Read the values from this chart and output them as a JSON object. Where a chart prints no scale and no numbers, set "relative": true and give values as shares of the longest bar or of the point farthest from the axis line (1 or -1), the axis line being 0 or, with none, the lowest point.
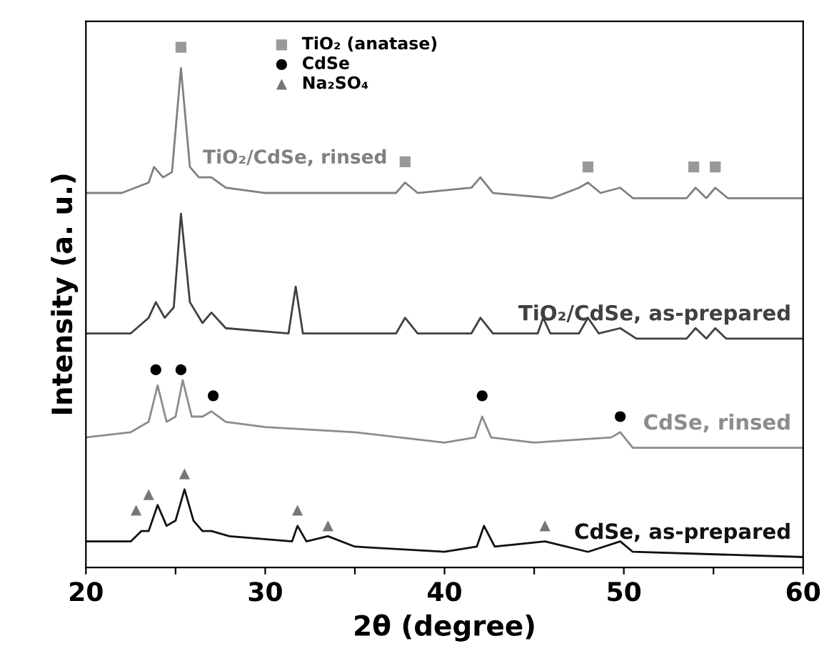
{
  "chart_data": {
    "type": "line",
    "relative": true,
    "xlabel": "2θ (degree)",
    "ylabel": "Intensity (a. u.)",
    "xlim": [
      20,
      60
    ],
    "xticks": [
      20,
      {
        "value": 25,
        "label": null
      },
      30,
      {
        "value": 35,
        "label": null
      },
      40,
      {
        "value": 45,
        "label": null
      },
      50,
      {
        "value": 55,
        "label": null
      },
      60
    ],
    "tick_labels": "x",
    "grid": false,
    "legend": "top",
    "marker": "none",
    "series": [
      {
        "name": "TiO₂/CdSe, rinsed",
        "color": "#808080",
        "x": [
          20,
          22,
          23.5,
          23.8,
          24.3,
          24.8,
          25.3,
          25.8,
          26.3,
          27,
          27.8,
          30,
          35,
          37.3,
          37.8,
          38.5,
          41.5,
          42,
          42.7,
          46,
          47.5,
          48,
          48.7,
          49.8,
          50.5,
          53.5,
          54,
          54.6,
          55.1,
          55.8,
          60
        ],
        "values": [
          0.72,
          0.72,
          0.74,
          0.77,
          0.75,
          0.76,
          0.96,
          0.77,
          0.75,
          0.75,
          0.73,
          0.72,
          0.72,
          0.72,
          0.74,
          0.72,
          0.73,
          0.75,
          0.72,
          0.71,
          0.73,
          0.74,
          0.72,
          0.73,
          0.71,
          0.71,
          0.73,
          0.71,
          0.73,
          0.71,
          0.71
        ]
      },
      {
        "name": "TiO₂/CdSe, as-prepared",
        "color": "#404040",
        "x": [
          20,
          22.5,
          23.5,
          23.9,
          24.4,
          24.9,
          25.3,
          25.8,
          26.5,
          27,
          27.8,
          31.3,
          31.7,
          32.1,
          37.3,
          37.8,
          38.5,
          41.5,
          42,
          42.7,
          45.2,
          45.5,
          45.9,
          47.5,
          48,
          48.6,
          49.8,
          50.7,
          53.5,
          54,
          54.6,
          55.1,
          55.7,
          60
        ],
        "values": [
          0.45,
          0.45,
          0.48,
          0.51,
          0.48,
          0.5,
          0.68,
          0.51,
          0.47,
          0.49,
          0.46,
          0.45,
          0.54,
          0.45,
          0.45,
          0.48,
          0.45,
          0.45,
          0.48,
          0.45,
          0.45,
          0.48,
          0.45,
          0.45,
          0.48,
          0.45,
          0.46,
          0.44,
          0.44,
          0.46,
          0.44,
          0.46,
          0.44,
          0.44
        ]
      },
      {
        "name": "CdSe, rinsed",
        "color": "#8c8c8c",
        "x": [
          20,
          22.5,
          23.5,
          24,
          24.5,
          25,
          25.4,
          25.9,
          26.5,
          27,
          27.8,
          30,
          35,
          40,
          41.7,
          42.1,
          42.6,
          45,
          49.3,
          49.8,
          50.5,
          60
        ],
        "values": [
          0.25,
          0.26,
          0.28,
          0.35,
          0.28,
          0.29,
          0.36,
          0.29,
          0.29,
          0.3,
          0.28,
          0.27,
          0.26,
          0.24,
          0.25,
          0.29,
          0.25,
          0.24,
          0.25,
          0.26,
          0.23,
          0.23
        ]
      },
      {
        "name": "CdSe, as-prepared",
        "color": "#111111",
        "x": [
          20,
          22.5,
          23.1,
          23.5,
          24,
          24.5,
          25,
          25.5,
          26,
          26.5,
          27,
          28,
          31.5,
          31.8,
          32.3,
          33.5,
          35,
          40,
          41.8,
          42.2,
          42.8,
          45.6,
          48,
          49.8,
          50.5,
          60
        ],
        "values": [
          0.05,
          0.05,
          0.07,
          0.07,
          0.12,
          0.08,
          0.09,
          0.15,
          0.09,
          0.07,
          0.07,
          0.06,
          0.05,
          0.08,
          0.05,
          0.06,
          0.04,
          0.03,
          0.04,
          0.08,
          0.04,
          0.05,
          0.03,
          0.05,
          0.03,
          0.02
        ]
      },
      {
        "type": "scatter",
        "name": "TiO₂ (anatase)",
        "marker": "square",
        "color": "#999999",
        "x": [
          25.3,
          37.8,
          48,
          53.9,
          55.1
        ],
        "values": [
          1.0,
          0.78,
          0.77,
          0.77,
          0.77
        ]
      },
      {
        "type": "scatter",
        "name": "CdSe",
        "marker": "circle",
        "color": "#000000",
        "x": [
          23.9,
          25.3,
          27.1,
          42.1,
          49.8
        ],
        "values": [
          0.38,
          0.38,
          0.33,
          0.33,
          0.29
        ]
      },
      {
        "type": "scatter",
        "name": "Na₂SO₄",
        "marker": "triangle",
        "color": "#777777",
        "x": [
          22.8,
          23.5,
          25.5,
          31.8,
          33.5,
          45.6
        ],
        "values": [
          0.11,
          0.14,
          0.18,
          0.11,
          0.08,
          0.08
        ]
      }
    ]
  }
}
